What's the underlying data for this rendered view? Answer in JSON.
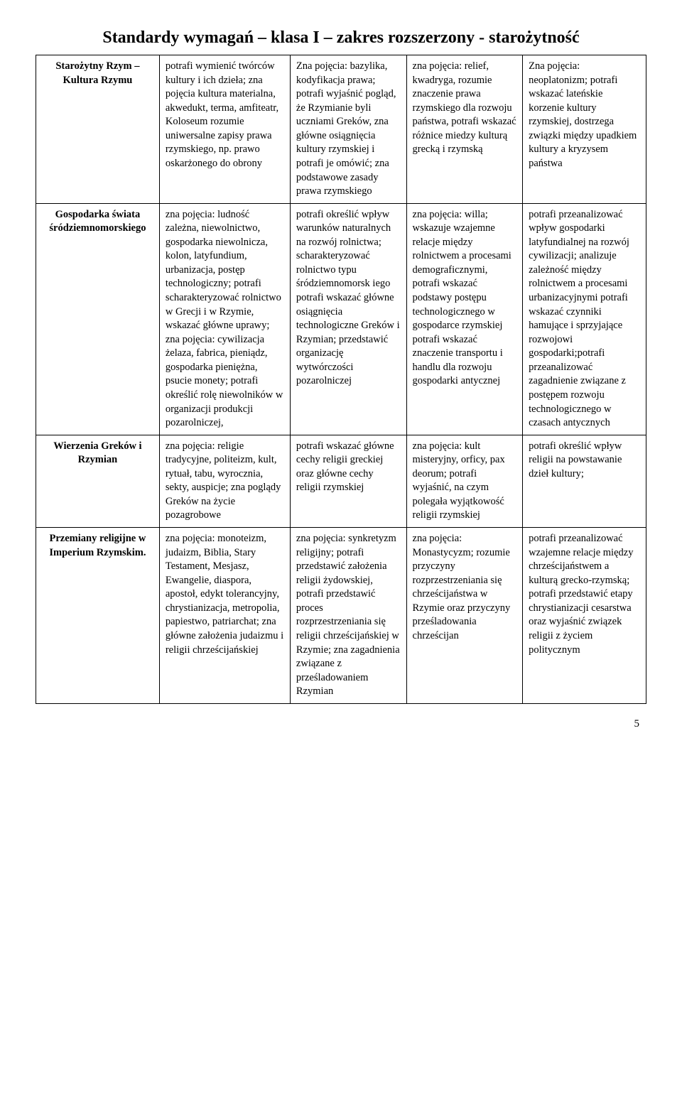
{
  "title": "Standardy wymagań – klasa I – zakres rozszerzony - starożytność",
  "page_number": "5",
  "rows": [
    {
      "label": "Starożytny Rzym – Kultura Rzymu",
      "c2": "potrafi wymienić twórców kultury i ich dzieła; zna pojęcia kultura materialna, akwedukt, terma, amfiteatr, Koloseum rozumie uniwersalne zapisy prawa rzymskiego, np. prawo oskarżonego do obrony",
      "c3": "Zna pojęcia: bazylika, kodyfikacja prawa; potrafi wyjaśnić pogląd, że Rzymianie byli uczniami Greków, zna główne osiągnięcia kultury rzymskiej i potrafi je omówić; zna podstawowe zasady prawa rzymskiego",
      "c4": "zna pojęcia: relief, kwadryga, rozumie znaczenie prawa rzymskiego dla rozwoju państwa, potrafi wskazać różnice miedzy kulturą grecką i rzymską",
      "c5": "Zna pojęcia: neoplatonizm; potrafi wskazać lateńskie korzenie kultury rzymskiej, dostrzega związki między upadkiem kultury a kryzysem państwa"
    },
    {
      "label": "Gospodarka świata śródziemnomorskiego",
      "c2": "zna pojęcia: ludność zależna, niewolnictwo, gospodarka niewolnicza, kolon, latyfundium, urbanizacja, postęp technologiczny; potrafi scharakteryzować rolnictwo w Grecji i w Rzymie, wskazać główne uprawy; zna pojęcia: cywilizacja żelaza, fabrica, pieniądz, gospodarka pieniężna, psucie monety; potrafi określić rolę niewolników w organizacji produkcji pozarolniczej,",
      "c3": "potrafi określić wpływ warunków naturalnych na rozwój rolnictwa; scharakteryzować rolnictwo typu śródziemnomorsk iego potrafi wskazać główne osiągnięcia technologiczne Greków i Rzymian; przedstawić organizację wytwórczości pozarolniczej",
      "c4": "zna pojęcia: willa; wskazuje wzajemne relacje między rolnictwem a procesami demograficznymi, potrafi wskazać podstawy postępu technologicznego w gospodarce rzymskiej potrafi wskazać znaczenie transportu i handlu dla rozwoju gospodarki antycznej",
      "c5": "potrafi przeanalizować wpływ gospodarki latyfundialnej na rozwój cywilizacji; analizuje zależność między rolnictwem a procesami urbanizacyjnymi potrafi wskazać czynniki hamujące i sprzyjające rozwojowi gospodarki;potrafi przeanalizować zagadnienie związane z postępem rozwoju technologicznego w czasach antycznych"
    },
    {
      "label": "Wierzenia Greków i Rzymian",
      "c2": "zna pojęcia: religie tradycyjne, politeizm, kult, rytuał, tabu, wyrocznia, sekty, auspicje; zna poglądy Greków na życie pozagrobowe",
      "c3": "potrafi wskazać główne cechy religii greckiej oraz główne cechy religii rzymskiej",
      "c4": "zna pojęcia: kult misteryjny, orficy, pax deorum; potrafi wyjaśnić, na czym polegała wyjątkowość religii rzymskiej",
      "c5": "potrafi określić wpływ religii na powstawanie dzieł kultury;"
    },
    {
      "label": "Przemiany religijne w Imperium Rzymskim.",
      "c2": "zna pojęcia: monoteizm, judaizm, Biblia, Stary Testament, Mesjasz, Ewangelie, diaspora, apostoł, edykt tolerancyjny, chrystianizacja, metropolia, papiestwo, patriarchat; zna główne założenia judaizmu i religii chrześcijańskiej",
      "c3": "zna pojęcia: synkretyzm religijny; potrafi przedstawić założenia religii żydowskiej, potrafi przedstawić proces rozprzestrzeniania się religii chrześcijańskiej w Rzymie; zna zagadnienia związane z prześladowaniem Rzymian",
      "c4": "zna pojęcia: Monastycyzm; rozumie przyczyny rozprzestrzeniania się chrześcijaństwa w Rzymie oraz przyczyny prześladowania chrześcijan",
      "c5": "potrafi przeanalizować wzajemne relacje między chrześcijaństwem a kulturą grecko-rzymską; potrafi przedstawić etapy chrystianizacji cesarstwa oraz wyjaśnić związek religii z życiem politycznym"
    }
  ]
}
